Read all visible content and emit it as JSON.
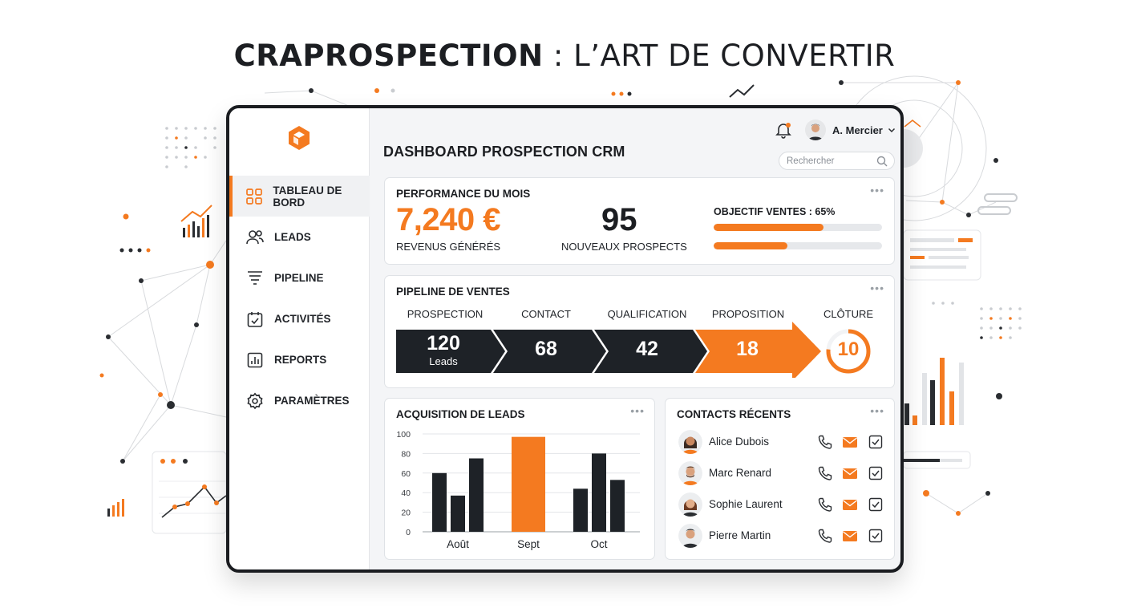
{
  "headline": {
    "brand": "CRAPROSPECTION",
    "rest": " : L’ART DE CONVERTIR"
  },
  "colors": {
    "accent": "#f47a20",
    "dark": "#1e2227",
    "panel": "#f4f5f7"
  },
  "sidebar": {
    "logo": "hexagon-logo-icon",
    "items": [
      {
        "label": "TABLEAU DE BORD",
        "icon": "grid-icon",
        "active": true
      },
      {
        "label": "LEADS",
        "icon": "users-icon",
        "active": false
      },
      {
        "label": "PIPELINE",
        "icon": "funnel-icon",
        "active": false
      },
      {
        "label": "ACTIVITÉS",
        "icon": "calendar-check-icon",
        "active": false
      },
      {
        "label": "REPORTS",
        "icon": "bar-report-icon",
        "active": false
      },
      {
        "label": "PARAMÈTRES",
        "icon": "gear-icon",
        "active": false
      }
    ]
  },
  "header": {
    "title": "DASHBOARD PROSPECTION CRM",
    "user_name": "A. Mercier",
    "search_placeholder": "Rechercher"
  },
  "performance": {
    "title": "PERFORMANCE DU MOIS",
    "revenue": "7,240 €",
    "revenue_label": "REVENUS GÉNÉRÉS",
    "prospects": "95",
    "prospects_label": "NOUVEAUX PROSPECTS",
    "objective_label": "OBJECTIF VENTES : 65%",
    "objective_fraction": 0.65,
    "secondary_fraction": 0.44
  },
  "pipeline": {
    "title": "PIPELINE DE VENTES",
    "stages": [
      {
        "label": "PROSPECTION",
        "value": "120",
        "sub": "Leads"
      },
      {
        "label": "CONTACT",
        "value": "68",
        "sub": ""
      },
      {
        "label": "QUALIFICATION",
        "value": "42",
        "sub": ""
      },
      {
        "label": "PROPOSITION",
        "value": "18",
        "sub": ""
      },
      {
        "label": "CLÔTURE",
        "value": "10",
        "sub": ""
      }
    ]
  },
  "acquisition": {
    "title": "ACQUISITION DE LEADS"
  },
  "chart_data": {
    "type": "bar",
    "title": "ACQUISITION DE LEADS",
    "categories": [
      "Août",
      "Sept",
      "Oct"
    ],
    "series": [
      {
        "values": [
          60,
          0,
          44
        ]
      },
      {
        "values": [
          37,
          97,
          80
        ]
      },
      {
        "values": [
          75,
          0,
          53
        ]
      }
    ],
    "highlight": {
      "category": "Sept",
      "value": 97
    },
    "yticks": [
      "100",
      "80",
      "60",
      "40",
      "20",
      "0"
    ],
    "ylim": [
      0,
      100
    ],
    "grid": true
  },
  "contacts": {
    "title": "CONTACTS RÉCENTS",
    "items": [
      {
        "name": "Alice Dubois"
      },
      {
        "name": "Marc Renard"
      },
      {
        "name": "Sophie Laurent"
      },
      {
        "name": "Pierre Martin"
      }
    ]
  }
}
